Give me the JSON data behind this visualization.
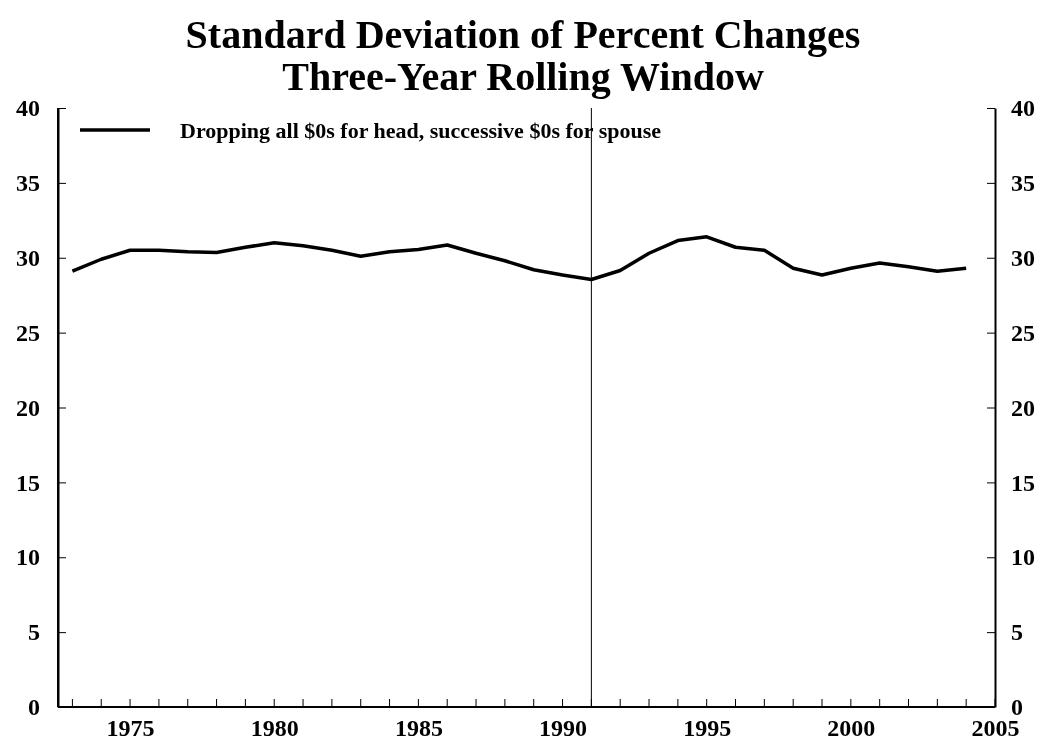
{
  "chart_data": {
    "type": "line",
    "title": "Standard Deviation of Percent Changes\nThree-Year Rolling Window",
    "x": [
      1973,
      1974,
      1975,
      1976,
      1977,
      1978,
      1979,
      1980,
      1981,
      1982,
      1983,
      1984,
      1985,
      1986,
      1987,
      1988,
      1989,
      1990,
      1991,
      1992,
      1993,
      1994,
      1995,
      1996,
      1997,
      1998,
      1999,
      2000,
      2001,
      2002,
      2003,
      2004
    ],
    "series": [
      {
        "name": "Dropping all $0s for head, successive $0s for spouse",
        "color": "#000000",
        "values": [
          29.1,
          29.9,
          30.5,
          30.5,
          30.4,
          30.35,
          30.7,
          31.0,
          30.8,
          30.5,
          30.1,
          30.4,
          30.55,
          30.85,
          30.3,
          29.8,
          29.2,
          28.85,
          28.55,
          29.15,
          30.3,
          31.15,
          31.4,
          30.7,
          30.5,
          29.3,
          28.85,
          29.3,
          29.65,
          29.4,
          29.1,
          29.3
        ]
      }
    ],
    "xlim": [
      1972.5,
      2005
    ],
    "xticks": [
      1975,
      1980,
      1985,
      1990,
      1995,
      2000,
      2005
    ],
    "ylim": [
      0,
      40
    ],
    "yticks": [
      0,
      5,
      10,
      15,
      20,
      25,
      30,
      35,
      40
    ],
    "y2lim": [
      0,
      40
    ],
    "y2ticks": [
      0,
      5,
      10,
      15,
      20,
      25,
      30,
      35,
      40
    ],
    "ref_lines": [
      {
        "axis": "x",
        "value": 1991,
        "color": "#000000"
      }
    ],
    "legend": "top",
    "grid": false,
    "marker": "none",
    "line_style": "solid"
  }
}
